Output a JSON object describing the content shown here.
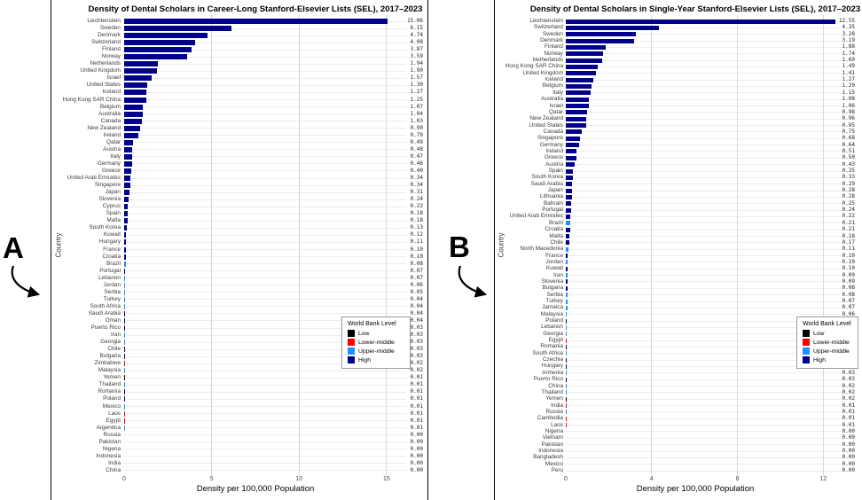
{
  "panel_labels": {
    "a": "A",
    "b": "B"
  },
  "level_colors": {
    "Low": "#000000",
    "Lower-middle": "#FF0000",
    "Upper-middle": "#1E90FF",
    "High": "#00008B"
  },
  "chart_data": [
    {
      "type": "bar",
      "orientation": "horizontal",
      "title": "Density of Dental Scholars in Career-Long Stanford-Elsevier Lists (SEL), 2017–2023",
      "xlabel": "Density per 100,000 Population",
      "ylabel": "Country",
      "xlim": [
        0,
        15
      ],
      "xticks": [
        0,
        5,
        10,
        15
      ],
      "grid": true,
      "legend": {
        "title": "World Bank Level",
        "position": "right-lower",
        "items": [
          {
            "label": "Low",
            "color": "#000000"
          },
          {
            "label": "Lower-middle",
            "color": "#FF0000"
          },
          {
            "label": "Upper-middle",
            "color": "#1E90FF"
          },
          {
            "label": "High",
            "color": "#00008B"
          }
        ]
      },
      "countries": [
        "Liechtenstein",
        "Sweden",
        "Denmark",
        "Switzerland",
        "Finland",
        "Norway",
        "Netherlands",
        "United Kingdom",
        "Israel",
        "United States",
        "Iceland",
        "Hong Kong SAR China",
        "Belgium",
        "Australia",
        "Canada",
        "New Zealand",
        "Ireland",
        "Qatar",
        "Austria",
        "Italy",
        "Germany",
        "Greece",
        "United Arab Emirates",
        "Singapore",
        "Japan",
        "Slovenia",
        "Cyprus",
        "Spain",
        "Malta",
        "South Korea",
        "Kuwait",
        "Hungary",
        "France",
        "Croatia",
        "Brazil",
        "Portugal",
        "Lebanon",
        "Jordan",
        "Serbia",
        "Turkey",
        "South Africa",
        "Saudi Arabia",
        "Oman",
        "Puerto Rico",
        "Iran",
        "Georgia",
        "Chile",
        "Bulgaria",
        "Zimbabwe",
        "Malaysia",
        "Yemen",
        "Thailand",
        "Romania",
        "Poland",
        "Mexico",
        "Laos",
        "Egypt",
        "Argentina",
        "Russia",
        "Pakistan",
        "Nigeria",
        "Indonesia",
        "India",
        "China"
      ],
      "values": [
        15.06,
        6.15,
        4.74,
        4.08,
        3.87,
        3.59,
        1.94,
        1.9,
        1.57,
        1.3,
        1.27,
        1.25,
        1.07,
        1.04,
        1.03,
        0.9,
        0.79,
        0.49,
        0.48,
        0.47,
        0.46,
        0.4,
        0.34,
        0.34,
        0.31,
        0.24,
        0.22,
        0.18,
        0.18,
        0.13,
        0.12,
        0.11,
        0.1,
        0.1,
        0.08,
        0.07,
        0.07,
        0.06,
        0.05,
        0.04,
        0.04,
        0.04,
        0.04,
        0.03,
        0.03,
        0.03,
        0.03,
        0.03,
        0.02,
        0.02,
        0.01,
        0.01,
        0.01,
        0.01,
        0.01,
        0.01,
        0.01,
        0.01,
        0.0,
        0.0,
        0.0,
        0.0,
        0.0,
        0.0
      ],
      "levels": [
        "High",
        "High",
        "High",
        "High",
        "High",
        "High",
        "High",
        "High",
        "High",
        "High",
        "High",
        "High",
        "High",
        "High",
        "High",
        "High",
        "High",
        "High",
        "High",
        "High",
        "High",
        "High",
        "High",
        "High",
        "High",
        "High",
        "High",
        "High",
        "High",
        "High",
        "High",
        "High",
        "High",
        "High",
        "Upper-middle",
        "High",
        "Upper-middle",
        "Upper-middle",
        "Upper-middle",
        "Upper-middle",
        "Upper-middle",
        "High",
        "High",
        "High",
        "Upper-middle",
        "Upper-middle",
        "High",
        "High",
        "Lower-middle",
        "Upper-middle",
        "Low",
        "Upper-middle",
        "High",
        "High",
        "Upper-middle",
        "Lower-middle",
        "Lower-middle",
        "Upper-middle",
        "Upper-middle",
        "Lower-middle",
        "Lower-middle",
        "Lower-middle",
        "Lower-middle",
        "Upper-middle"
      ]
    },
    {
      "type": "bar",
      "orientation": "horizontal",
      "title": "Density of Dental Scholars in Single-Year Stanford-Elsevier Lists (SEL), 2017–2023",
      "xlabel": "Density per 100,000 Population",
      "ylabel": "Country",
      "xlim": [
        0,
        12
      ],
      "xticks": [
        0,
        4,
        8,
        12
      ],
      "grid": true,
      "legend": {
        "title": "World Bank Level",
        "position": "right-lower",
        "items": [
          {
            "label": "Low",
            "color": "#000000"
          },
          {
            "label": "Lower-middle",
            "color": "#FF0000"
          },
          {
            "label": "Upper-middle",
            "color": "#1E90FF"
          },
          {
            "label": "High",
            "color": "#00008B"
          }
        ]
      },
      "countries": [
        "Liechtenstein",
        "Switzerland",
        "Sweden",
        "Denmark",
        "Finland",
        "Norway",
        "Netherlands",
        "Hong Kong SAR China",
        "United Kingdom",
        "Iceland",
        "Belgium",
        "Italy",
        "Australia",
        "Israel",
        "Qatar",
        "New Zealand",
        "United States",
        "Canada",
        "Singapore",
        "Germany",
        "Ireland",
        "Greece",
        "Austria",
        "Spain",
        "South Korea",
        "Saudi Arabia",
        "Japan",
        "Lithuania",
        "Bahrain",
        "Portugal",
        "United Arab Emirates",
        "Brazil",
        "Croatia",
        "Malta",
        "Chile",
        "North Macedonia",
        "France",
        "Jordan",
        "Kuwait",
        "Iran",
        "Slovenia",
        "Bulgaria",
        "Serbia",
        "Turkey",
        "Jamaica",
        "Malaysia",
        "Poland",
        "Lebanon",
        "Georgia",
        "Egypt",
        "Romania",
        "South Africa",
        "Czechia",
        "Hungary",
        "Armenia",
        "Puerto Rico",
        "China",
        "Thailand",
        "Yemen",
        "India",
        "Russia",
        "Cambodia",
        "Laos",
        "Nigeria",
        "Vietnam",
        "Pakistan",
        "Indonesia",
        "Bangladesh",
        "Mexico",
        "Peru"
      ],
      "values": [
        12.55,
        4.35,
        3.28,
        3.19,
        1.88,
        1.74,
        1.69,
        1.49,
        1.41,
        1.27,
        1.2,
        1.15,
        1.08,
        1.06,
        0.98,
        0.96,
        0.95,
        0.75,
        0.68,
        0.64,
        0.51,
        0.5,
        0.43,
        0.35,
        0.33,
        0.29,
        0.28,
        0.28,
        0.25,
        0.24,
        0.22,
        0.21,
        0.21,
        0.18,
        0.17,
        0.11,
        0.1,
        0.1,
        0.1,
        0.09,
        0.09,
        0.08,
        0.08,
        0.07,
        0.07,
        0.06,
        0.05,
        0.05,
        0.05,
        0.04,
        0.04,
        0.03,
        0.03,
        0.03,
        0.03,
        0.03,
        0.02,
        0.02,
        0.02,
        0.01,
        0.01,
        0.01,
        0.01,
        0.0,
        0.0,
        0.0,
        0.0,
        0.0,
        0.0,
        0.0
      ],
      "levels": [
        "High",
        "High",
        "High",
        "High",
        "High",
        "High",
        "High",
        "High",
        "High",
        "High",
        "High",
        "High",
        "High",
        "High",
        "High",
        "High",
        "High",
        "High",
        "High",
        "High",
        "High",
        "High",
        "High",
        "High",
        "High",
        "High",
        "High",
        "High",
        "High",
        "High",
        "High",
        "Upper-middle",
        "High",
        "High",
        "High",
        "Upper-middle",
        "High",
        "Upper-middle",
        "High",
        "Upper-middle",
        "High",
        "High",
        "Upper-middle",
        "Upper-middle",
        "Upper-middle",
        "Upper-middle",
        "High",
        "Upper-middle",
        "Upper-middle",
        "Lower-middle",
        "High",
        "Upper-middle",
        "High",
        "High",
        "Upper-middle",
        "High",
        "Upper-middle",
        "Upper-middle",
        "Low",
        "Lower-middle",
        "Upper-middle",
        "Lower-middle",
        "Lower-middle",
        "Lower-middle",
        "Lower-middle",
        "Lower-middle",
        "Lower-middle",
        "Lower-middle",
        "Upper-middle",
        "Upper-middle"
      ]
    }
  ]
}
